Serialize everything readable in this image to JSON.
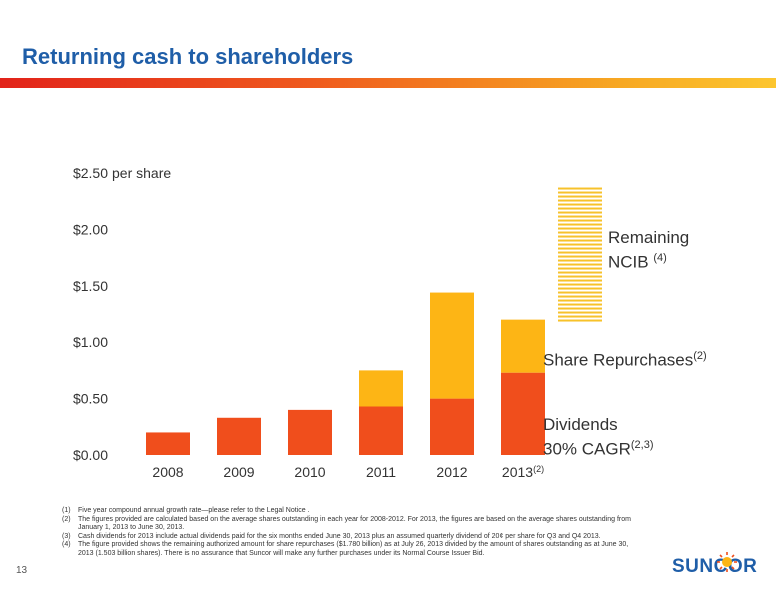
{
  "title": "Returning cash to shareholders",
  "page_number": "13",
  "logo_text": "SUNCOR",
  "unit_label": "per share",
  "labels": {
    "remaining_ncib": "Remaining",
    "remaining_ncib_2": "NCIB",
    "remaining_ncib_ref": "(4)",
    "share_repurchases": "Share Repurchases",
    "share_repurchases_ref": "(2)",
    "dividends": "Dividends",
    "cagr": "30% CAGR",
    "cagr_ref": "(2,3)"
  },
  "footnotes": [
    {
      "num": "(1)",
      "text": "Five year compound annual growth rate—please refer to the Legal Notice ."
    },
    {
      "num": "(2)",
      "text": "The figures provided are calculated based on the average shares outstanding in each year for 2008-2012. For 2013, the figures are based on the average shares outstanding from January 1, 2013 to June 30, 2013."
    },
    {
      "num": "(3)",
      "text": "Cash dividends for 2013 include actual dividends paid for the six months ended June 30, 2013 plus an assumed quarterly dividend of 20¢ per share for Q3 and Q4 2013."
    },
    {
      "num": "(4)",
      "text": "The figure provided shows the remaining authorized amount for share repurchases ($1.780 billion) as at July 26, 2013 divided by the amount of shares outstanding as at June 30, 2013 (1.503 billion shares). There is no assurance that Suncor will make any further purchases under its Normal Course Issuer Bid."
    }
  ],
  "colors": {
    "dividends": "#f04e1c",
    "repurchases": "#fdb515",
    "ncib": "#f7c22a",
    "axis_text": "#333333"
  },
  "chart_data": {
    "type": "bar",
    "stacked": true,
    "categories": [
      "2008",
      "2009",
      "2010",
      "2011",
      "2012",
      "2013"
    ],
    "category_refs": [
      "",
      "",
      "",
      "",
      "",
      "(2)"
    ],
    "series": [
      {
        "name": "Dividends",
        "values": [
          0.2,
          0.33,
          0.4,
          0.43,
          0.5,
          0.73
        ]
      },
      {
        "name": "Share Repurchases",
        "values": [
          0,
          0,
          0,
          0.32,
          0.94,
          0.47
        ]
      },
      {
        "name": "Remaining NCIB",
        "values": [
          0,
          0,
          0,
          0,
          0,
          1.18
        ]
      }
    ],
    "ncib_base": 1.2,
    "yticks": [
      "$0.00",
      "$0.50",
      "$1.00",
      "$1.50",
      "$2.00",
      "$2.50"
    ],
    "ylim": [
      0,
      2.5
    ],
    "grid": false,
    "legend": "none"
  }
}
